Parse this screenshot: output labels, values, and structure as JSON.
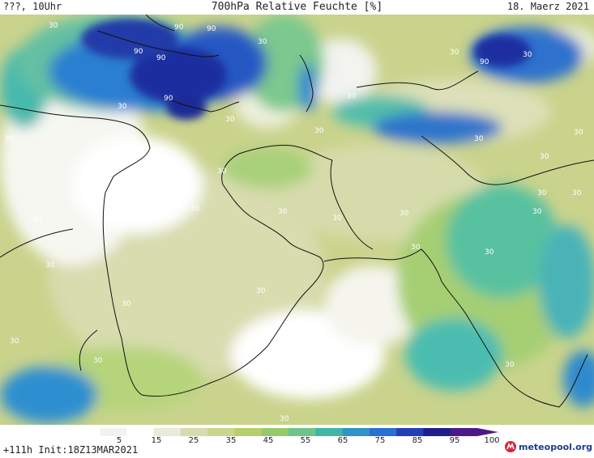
{
  "header": {
    "left": "???, 10Uhr",
    "title": "700hPa Relative Feuchte [%]",
    "date": "18. Maerz 2021"
  },
  "footer": {
    "init": "+111h Init:18Z13MAR2021",
    "logo_text": "meteopool.org"
  },
  "legend": {
    "ticks": [
      "5",
      "15",
      "25",
      "35",
      "45",
      "55",
      "65",
      "75",
      "85",
      "95",
      "100"
    ],
    "colors": [
      "#f2f2f2",
      "#ffffff",
      "#e8ebd9",
      "#d6dcb0",
      "#c8d58a",
      "#b5cf6a",
      "#96c96a",
      "#6dc48a",
      "#41b6a4",
      "#2f95c8",
      "#2a6fd2",
      "#233fb8",
      "#1d1f8f",
      "#4b1a87"
    ]
  },
  "map_labels": {
    "values": [
      "30",
      "30",
      "90",
      "90",
      "30",
      "90",
      "90",
      "90",
      "30",
      "90",
      "30",
      "30",
      "30",
      "30",
      "30",
      "30",
      "30",
      "30",
      "30",
      "30",
      "30",
      "30",
      "30",
      "30",
      "30",
      "30",
      "30",
      "30",
      "30",
      "30",
      "30",
      "30",
      "30",
      "30",
      "30",
      "30"
    ]
  }
}
